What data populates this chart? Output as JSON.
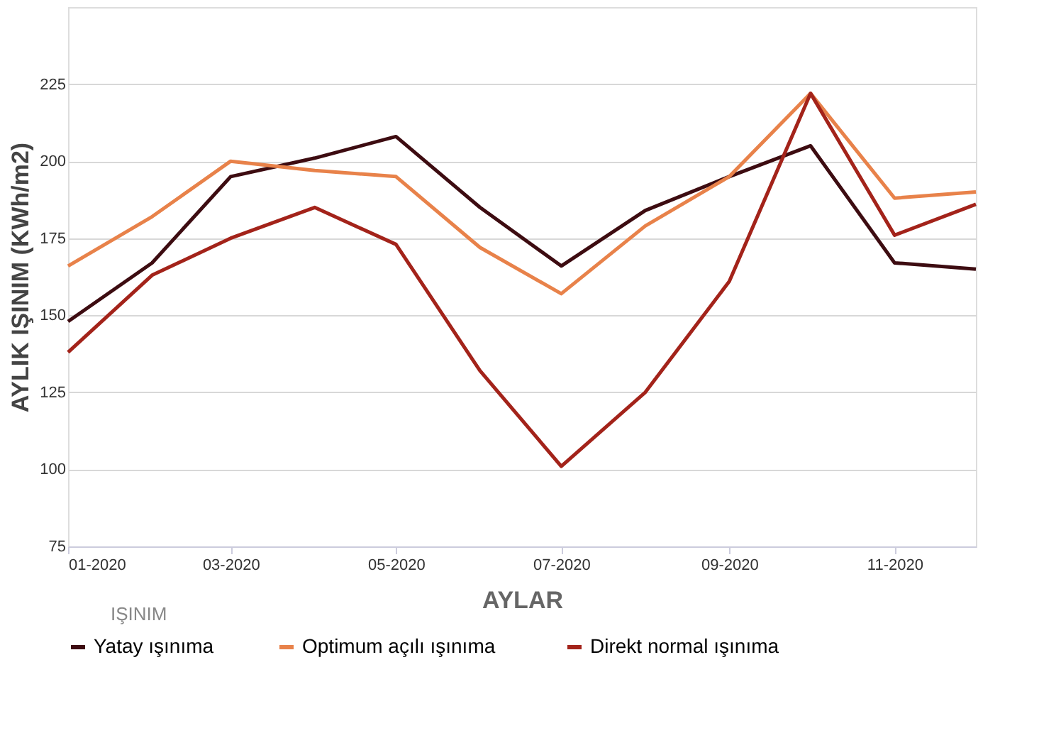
{
  "chart_data": {
    "type": "line",
    "xlabel": "AYLAR",
    "ylabel": "AYLIK IŞINIM (KWh/m2)",
    "annotations": [
      "IŞINIM"
    ],
    "x": [
      "2020-01",
      "2020-02",
      "2020-03",
      "2020-04",
      "2020-05",
      "2020-06",
      "2020-07",
      "2020-08",
      "2020-09",
      "2020-10",
      "2020-11",
      "2020-12"
    ],
    "series": [
      {
        "name": "Yatay ışınıma",
        "color": "#3d0c11",
        "values": [
          148,
          167,
          195,
          201,
          208,
          185,
          166,
          184,
          195,
          205,
          167,
          165
        ]
      },
      {
        "name": "Optimum  açılı ışınıma",
        "color": "#e8824a",
        "values": [
          166,
          182,
          200,
          197,
          195,
          172,
          157,
          179,
          195,
          222,
          188,
          190
        ]
      },
      {
        "name": "Direkt normal ışınıma",
        "color": "#a3231a",
        "values": [
          138,
          163,
          175,
          185,
          173,
          132,
          101,
          125,
          161,
          222,
          176,
          186
        ]
      }
    ],
    "xlim": [
      "2020-01",
      "2020-12"
    ],
    "xticks": [
      {
        "value": "2020-01",
        "label": "01-2020"
      },
      {
        "value": "2020-03",
        "label": "03-2020"
      },
      {
        "value": "2020-05",
        "label": "05-2020"
      },
      {
        "value": "2020-07",
        "label": "07-2020"
      },
      {
        "value": "2020-09",
        "label": "09-2020"
      },
      {
        "value": "2020-11",
        "label": "11-2020"
      }
    ],
    "ylim": [
      75,
      250
    ],
    "yticks": [
      75,
      100,
      125,
      150,
      175,
      200,
      225
    ],
    "grid": "y",
    "legend": "bottom",
    "marker": "none",
    "line_style": "solid"
  }
}
